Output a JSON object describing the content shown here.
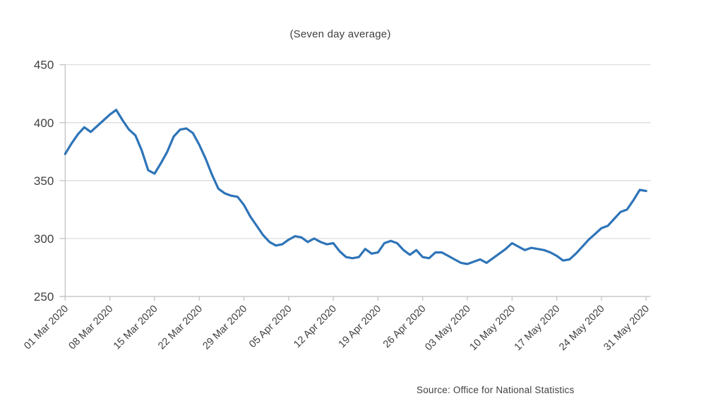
{
  "title": "(Seven day average)",
  "source_note": "Source: Office for National Statistics",
  "chart_data": {
    "type": "line",
    "title": "(Seven day average)",
    "xlabel": "",
    "ylabel": "",
    "ylim": [
      250,
      450
    ],
    "y_ticks": [
      250,
      300,
      350,
      400,
      450
    ],
    "grid": "horizontal",
    "legend_position": "none",
    "x_tick_labels": [
      "01 Mar 2020",
      "08 Mar 2020",
      "15 Mar 2020",
      "22 Mar 2020",
      "29 Mar 2020",
      "05 Apr 2020",
      "12 Apr 2020",
      "19 Apr 2020",
      "26 Apr 2020",
      "03 May 2020",
      "10 May 2020",
      "17 May 2020",
      "24 May 2020",
      "31 May 2020"
    ],
    "x_tick_indices": [
      0,
      7,
      14,
      21,
      28,
      35,
      42,
      49,
      56,
      63,
      70,
      77,
      84,
      91
    ],
    "x_start_date": "01 Mar 2020",
    "x_end_date": "31 May 2020",
    "x_frequency": "daily",
    "series": [
      {
        "name": "Seven day average",
        "color": "#2E74B8",
        "values": [
          373,
          382,
          390,
          396,
          392,
          397,
          402,
          407,
          411,
          402,
          394,
          389,
          376,
          359,
          356,
          365,
          375,
          388,
          394,
          395,
          391,
          381,
          369,
          355,
          343,
          339,
          337,
          336,
          329,
          319,
          311,
          303,
          297,
          294,
          295,
          299,
          302,
          301,
          297,
          300,
          297,
          295,
          296,
          289,
          284,
          283,
          284,
          291,
          287,
          288,
          296,
          298,
          296,
          290,
          286,
          290,
          284,
          283,
          288,
          288,
          285,
          282,
          279,
          278,
          280,
          282,
          279,
          283,
          287,
          291,
          296,
          293,
          290,
          292,
          291,
          290,
          288,
          285,
          281,
          282,
          287,
          293,
          299,
          304,
          309,
          311,
          317,
          323,
          325,
          333,
          342,
          341
        ]
      }
    ],
    "colors": {
      "line": "#2E74B8",
      "gridline": "#D9D9D9",
      "axis": "#BFBFBF",
      "text": "#414042"
    }
  }
}
